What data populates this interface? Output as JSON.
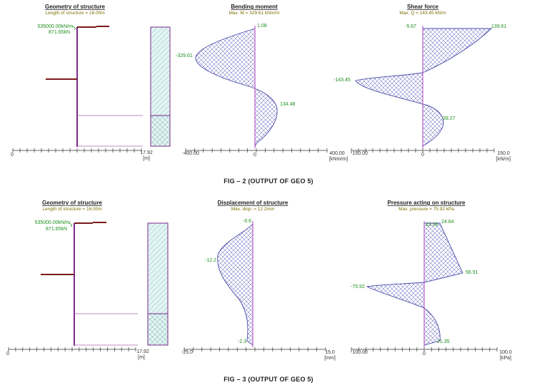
{
  "fig2": {
    "caption": "FIG – 2 (OUTPUT OF GEO 5)",
    "geometry": {
      "title": "Geometry of structure",
      "subtitle": "Length of structure = 16.00m",
      "support_stiffness": "535000.00kN/m",
      "support_force": "871.65kN",
      "axis_end": "17.92",
      "axis_unit": "[m]",
      "axis_start": "0"
    },
    "moment": {
      "title": "Bending moment",
      "subtitle": "Max. M = 329.61 kNm/m",
      "labels": {
        "top": "1.08",
        "min": "-329.61",
        "max": "134.48"
      },
      "axis_min": "-400.00",
      "axis_zero": "0",
      "axis_max": "400.00",
      "axis_unit": "[kNm/m]"
    },
    "shear": {
      "title": "Shear force",
      "subtitle": "Max. Q = 143.45 kN/m",
      "labels": {
        "top_left": "-5.67",
        "top_right": "139.61",
        "min": "-143.45",
        "max": "39.27"
      },
      "axis_min": "-150.00",
      "axis_zero": "0",
      "axis_max": "150.0",
      "axis_unit": "[kN/m]"
    }
  },
  "fig3": {
    "caption": "FIG – 3 (OUTPUT OF GEO 5)",
    "geometry": {
      "title": "Geometry of structure",
      "subtitle": "Length of structure = 16.00m",
      "support_stiffness": "535000.00kN/m",
      "support_force": "871.65kN",
      "axis_end": "17.92",
      "axis_unit": "[m]",
      "axis_start": "0"
    },
    "displacement": {
      "title": "Displacement of structure",
      "subtitle": "Max. disp. = 12.2mm",
      "labels": {
        "top": "-0.6",
        "max": "-12.2",
        "bottom": "-2.3"
      },
      "axis_min": "-25.0",
      "axis_max": "15.0",
      "axis_unit": "[mm]"
    },
    "pressure": {
      "title": "Pressure acting on structure",
      "subtitle": "Max. pressure = 75.92 kPa",
      "labels": {
        "top_a": "22.08",
        "top_b": "24.84",
        "right": "56.91",
        "min": "-75.92",
        "bottom": "21.35"
      },
      "axis_min": "-100.00",
      "axis_zero": "0",
      "axis_max": "100.0",
      "axis_unit": "[kPa]"
    }
  },
  "colors": {
    "structure": "#7a1a1a",
    "wall": "#7b2a8a",
    "hatch": "#3b3bb0",
    "soil": "#dff3f3",
    "label": "#1f8f1f"
  }
}
